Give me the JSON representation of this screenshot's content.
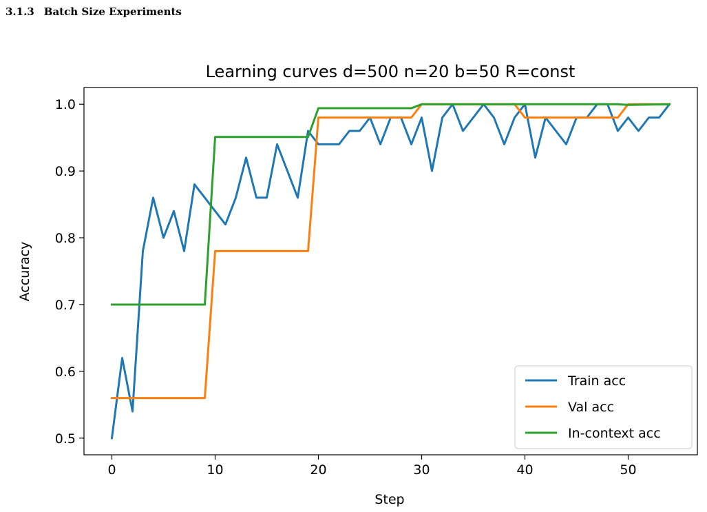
{
  "section": {
    "number": "3.1.3",
    "title": "Batch Size Experiments"
  },
  "chart_data": {
    "type": "line",
    "title": "Learning curves d=500 n=20 b=50 R=const",
    "xlabel": "Step",
    "ylabel": "Accuracy",
    "xlim": [
      -2.7,
      56.7
    ],
    "ylim": [
      0.475,
      1.025
    ],
    "xticks": [
      0,
      10,
      20,
      30,
      40,
      50
    ],
    "yticks": [
      0.5,
      0.6,
      0.7,
      0.8,
      0.9,
      1.0
    ],
    "grid": false,
    "legend_position": "lower right",
    "series": [
      {
        "name": "Train acc",
        "color": "#1f77b4",
        "x": [
          0,
          1,
          2,
          3,
          4,
          5,
          6,
          7,
          8,
          9,
          10,
          11,
          12,
          13,
          14,
          15,
          16,
          17,
          18,
          19,
          20,
          21,
          22,
          23,
          24,
          25,
          26,
          27,
          28,
          29,
          30,
          31,
          32,
          33,
          34,
          35,
          36,
          37,
          38,
          39,
          40,
          41,
          42,
          43,
          44,
          45,
          46,
          47,
          48,
          49,
          50,
          51,
          52,
          53,
          54
        ],
        "y": [
          0.5,
          0.62,
          0.54,
          0.78,
          0.86,
          0.8,
          0.84,
          0.78,
          0.88,
          0.86,
          0.84,
          0.82,
          0.86,
          0.92,
          0.86,
          0.86,
          0.94,
          0.9,
          0.86,
          0.96,
          0.94,
          0.94,
          0.94,
          0.96,
          0.96,
          0.98,
          0.94,
          0.98,
          0.98,
          0.94,
          0.98,
          0.9,
          0.98,
          1.0,
          0.96,
          0.98,
          1.0,
          0.98,
          0.94,
          0.98,
          1.0,
          0.92,
          0.98,
          0.96,
          0.94,
          0.98,
          0.98,
          1.0,
          1.0,
          0.96,
          0.98,
          0.96,
          0.98,
          0.98,
          1.0
        ]
      },
      {
        "name": "Val acc",
        "color": "#ff7f0e",
        "x": [
          0,
          9,
          10,
          19,
          20,
          29,
          30,
          39,
          40,
          49,
          50,
          54
        ],
        "y": [
          0.56,
          0.56,
          0.78,
          0.78,
          0.98,
          0.98,
          1.0,
          1.0,
          0.98,
          0.98,
          1.0,
          1.0
        ]
      },
      {
        "name": "In-context acc",
        "color": "#2ca02c",
        "x": [
          0,
          9,
          10,
          19,
          20,
          29,
          30,
          49,
          50,
          54
        ],
        "y": [
          0.7,
          0.7,
          0.951,
          0.951,
          0.994,
          0.994,
          1.0,
          1.0,
          0.999,
          1.0
        ]
      }
    ]
  }
}
